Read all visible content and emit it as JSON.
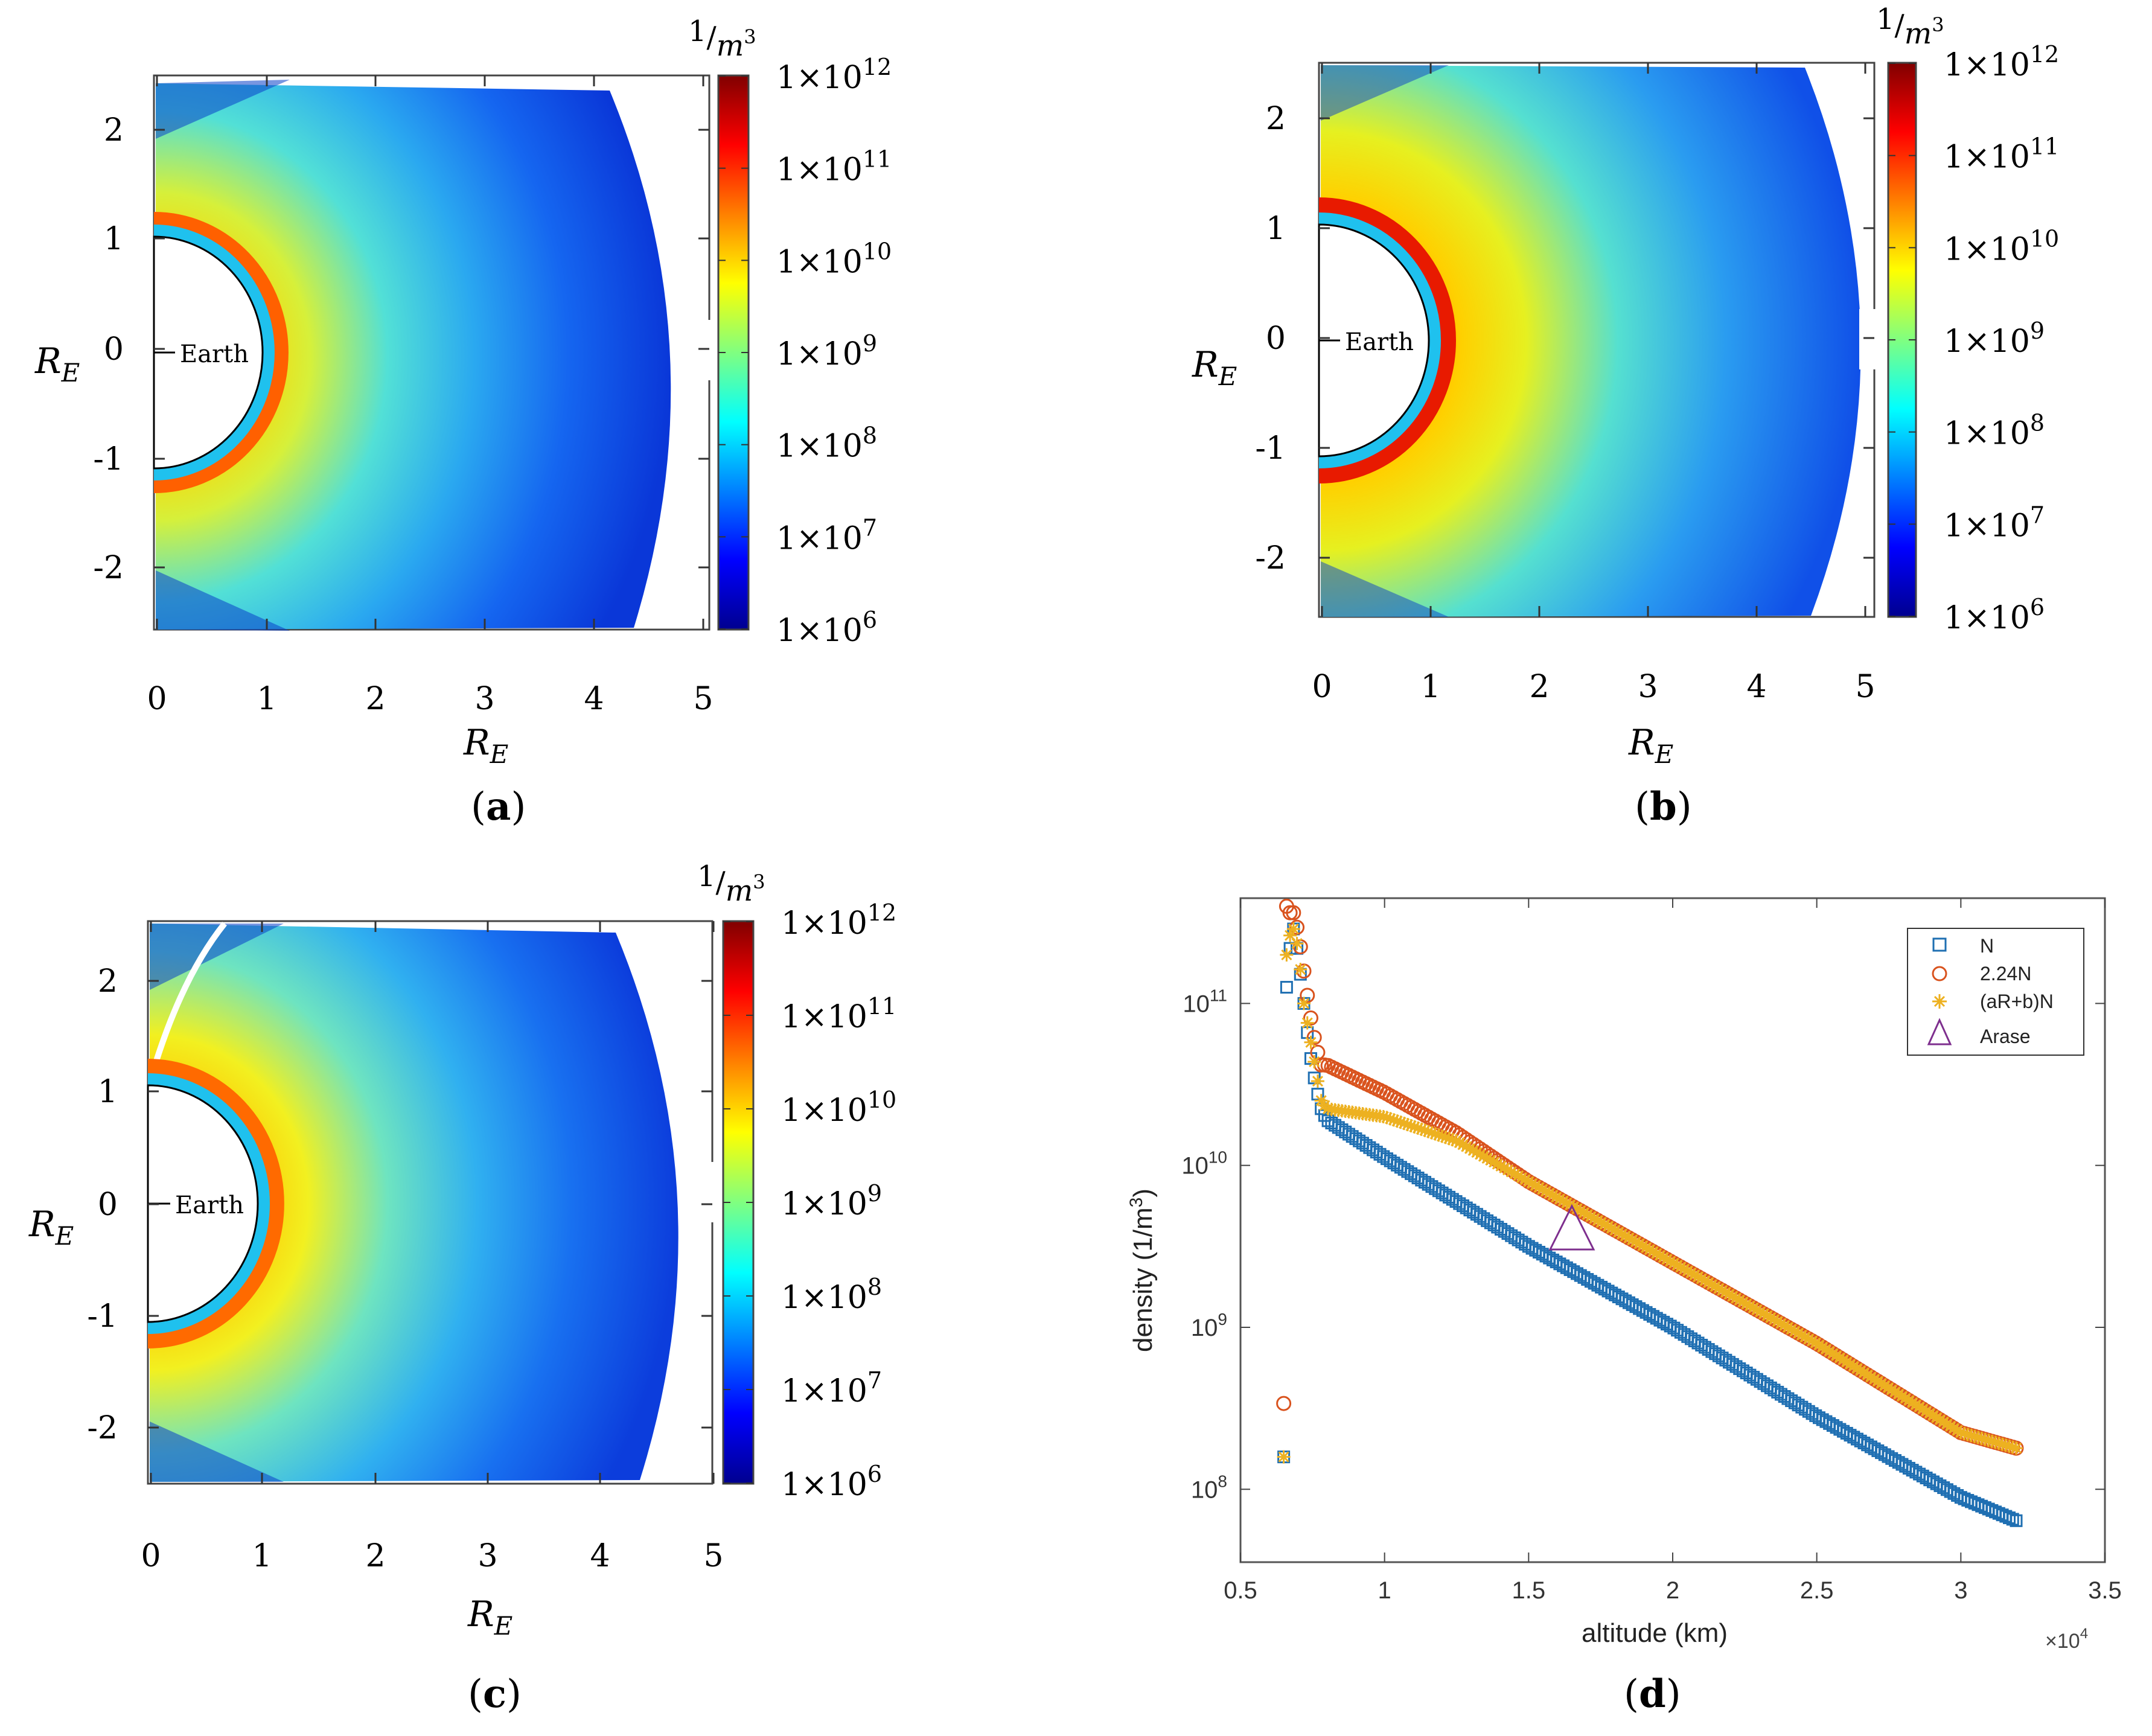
{
  "figure": {
    "panels": [
      {
        "id": "a",
        "label": "(a)",
        "label_letter": "a",
        "xlabel": "R",
        "xlabel_sub": "E",
        "ylabel": "R",
        "ylabel_sub": "E",
        "x_ticks": [
          "0",
          "1",
          "2",
          "3",
          "4",
          "5"
        ],
        "y_ticks": [
          "2",
          "1",
          "0",
          "-1",
          "-2"
        ],
        "planet_label": "Earth",
        "colorbar_unit_num": "1",
        "colorbar_unit_den": "m",
        "colorbar_unit_exp": "3",
        "colorbar_ticks": [
          {
            "base": "1×10",
            "exp": "12"
          },
          {
            "base": "1×10",
            "exp": "11"
          },
          {
            "base": "1×10",
            "exp": "10"
          },
          {
            "base": "1×10",
            "exp": "9"
          },
          {
            "base": "1×10",
            "exp": "8"
          },
          {
            "base": "1×10",
            "exp": "7"
          },
          {
            "base": "1×10",
            "exp": "6"
          }
        ]
      },
      {
        "id": "b",
        "label": "(b)",
        "label_letter": "b",
        "xlabel": "R",
        "xlabel_sub": "E",
        "ylabel": "R",
        "ylabel_sub": "E",
        "x_ticks": [
          "0",
          "1",
          "2",
          "3",
          "4",
          "5"
        ],
        "y_ticks": [
          "2",
          "1",
          "0",
          "-1",
          "-2"
        ],
        "planet_label": "Earth",
        "colorbar_unit_num": "1",
        "colorbar_unit_den": "m",
        "colorbar_unit_exp": "3",
        "colorbar_ticks": [
          {
            "base": "1×10",
            "exp": "12"
          },
          {
            "base": "1×10",
            "exp": "11"
          },
          {
            "base": "1×10",
            "exp": "10"
          },
          {
            "base": "1×10",
            "exp": "9"
          },
          {
            "base": "1×10",
            "exp": "8"
          },
          {
            "base": "1×10",
            "exp": "7"
          },
          {
            "base": "1×10",
            "exp": "6"
          }
        ]
      },
      {
        "id": "c",
        "label": "(c)",
        "label_letter": "c",
        "xlabel": "R",
        "xlabel_sub": "E",
        "ylabel": "R",
        "ylabel_sub": "E",
        "x_ticks": [
          "0",
          "1",
          "2",
          "3",
          "4",
          "5"
        ],
        "y_ticks": [
          "2",
          "1",
          "0",
          "-1",
          "-2"
        ],
        "planet_label": "Earth",
        "colorbar_unit_num": "1",
        "colorbar_unit_den": "m",
        "colorbar_unit_exp": "3",
        "colorbar_ticks": [
          {
            "base": "1×10",
            "exp": "12"
          },
          {
            "base": "1×10",
            "exp": "11"
          },
          {
            "base": "1×10",
            "exp": "10"
          },
          {
            "base": "1×10",
            "exp": "9"
          },
          {
            "base": "1×10",
            "exp": "8"
          },
          {
            "base": "1×10",
            "exp": "7"
          },
          {
            "base": "1×10",
            "exp": "6"
          }
        ]
      }
    ],
    "panel_d_label": "(d)",
    "panel_d_letter": "d"
  },
  "chart_data": [
    {
      "type": "heatmap",
      "panel": "a",
      "title": "",
      "xlabel": "R_E",
      "ylabel": "R_E",
      "xlim": [
        0,
        5
      ],
      "ylim": [
        -2.5,
        2.5
      ],
      "colorbar": {
        "unit": "1/m^3",
        "scale": "log",
        "range": [
          1000000.0,
          1000000000000.0
        ]
      },
      "description_values": {
        "peak_density_near_surface": 100000000000.0,
        "outer_edge_density": 10000000.0
      }
    },
    {
      "type": "heatmap",
      "panel": "b",
      "title": "",
      "xlabel": "R_E",
      "ylabel": "R_E",
      "xlim": [
        0,
        5
      ],
      "ylim": [
        -2.5,
        2.5
      ],
      "colorbar": {
        "unit": "1/m^3",
        "scale": "log",
        "range": [
          1000000.0,
          1000000000000.0
        ]
      },
      "description_values": {
        "peak_density_near_surface": 300000000000.0,
        "outer_edge_density": 20000000.0
      }
    },
    {
      "type": "heatmap",
      "panel": "c",
      "title": "",
      "xlabel": "R_E",
      "ylabel": "R_E",
      "xlim": [
        0,
        5
      ],
      "ylim": [
        -2.5,
        2.5
      ],
      "colorbar": {
        "unit": "1/m^3",
        "scale": "log",
        "range": [
          1000000.0,
          1000000000000.0
        ]
      },
      "description_values": {
        "peak_density_near_surface": 200000000000.0,
        "outer_edge_density": 20000000.0
      }
    },
    {
      "type": "scatter",
      "panel": "d",
      "title": "",
      "xlabel": "altitude (km)",
      "ylabel": "density (1/m",
      "ylabel_exp": "3",
      "ylabel_close": ")",
      "x_multiplier": "×10",
      "x_multiplier_exp": "4",
      "xlim": [
        0.5,
        3.5
      ],
      "ylim_log10": [
        7.55,
        11.65
      ],
      "yscale": "log",
      "x_ticks": [
        "0.5",
        "1",
        "1.5",
        "2",
        "2.5",
        "3",
        "3.5"
      ],
      "y_ticks": [
        {
          "base": "10",
          "exp": "11",
          "log": 11
        },
        {
          "base": "10",
          "exp": "10",
          "log": 10
        },
        {
          "base": "10",
          "exp": "9",
          "log": 9
        },
        {
          "base": "10",
          "exp": "8",
          "log": 8
        }
      ],
      "colors": {
        "N": "#1f6fb2",
        "2.24N": "#d9531e",
        "(aR+b)N": "#edb120",
        "Arase": "#7e2f8e"
      },
      "legend": [
        "N",
        "2.24N",
        "(aR+b)N",
        "Arase"
      ],
      "legend_position": "top-right",
      "series": [
        {
          "name": "N",
          "marker": "square",
          "x": [
            0.65,
            0.66,
            0.67,
            0.68,
            0.69,
            0.7,
            0.72,
            0.74,
            0.76,
            0.78,
            0.8,
            1.0,
            1.5,
            2.0,
            2.5,
            3.0,
            3.2
          ],
          "log10_values": [
            8.2,
            11.1,
            11.3,
            11.5,
            11.4,
            11.3,
            11.0,
            10.7,
            10.5,
            10.35,
            10.28,
            10.05,
            9.5,
            9.0,
            8.45,
            7.95,
            7.8
          ]
        },
        {
          "name": "2.24N",
          "marker": "circle",
          "x": [
            0.65,
            0.66,
            0.67,
            0.68,
            0.69,
            0.7,
            0.72,
            0.74,
            0.76,
            0.78,
            0.8,
            1.0,
            1.25,
            1.5,
            2.0,
            2.5,
            3.0,
            3.2
          ],
          "log10_values": [
            8.53,
            11.6,
            11.55,
            11.6,
            11.5,
            11.45,
            11.2,
            10.95,
            10.75,
            10.62,
            10.62,
            10.45,
            10.2,
            9.9,
            9.4,
            8.9,
            8.35,
            8.25
          ]
        },
        {
          "name": "(aR+b)N",
          "marker": "star",
          "x": [
            0.65,
            0.66,
            0.67,
            0.68,
            0.69,
            0.7,
            0.72,
            0.74,
            0.76,
            0.78,
            0.8,
            1.0,
            1.25,
            1.5,
            2.0,
            2.5,
            3.0,
            3.2
          ],
          "log10_values": [
            8.2,
            11.3,
            11.4,
            11.5,
            11.4,
            11.35,
            11.0,
            10.8,
            10.6,
            10.4,
            10.35,
            10.3,
            10.15,
            9.9,
            9.4,
            8.9,
            8.35,
            8.25
          ]
        },
        {
          "name": "Arase",
          "marker": "triangle",
          "x": [
            1.65
          ],
          "log10_values": [
            9.6
          ]
        }
      ]
    }
  ]
}
